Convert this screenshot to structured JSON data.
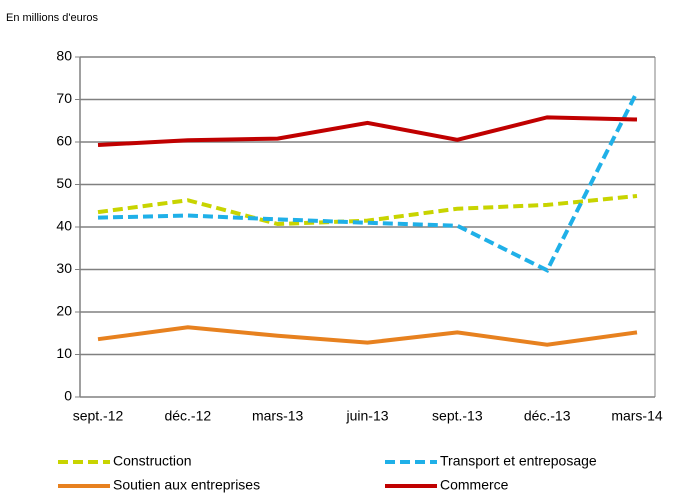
{
  "chart_data": {
    "type": "line",
    "axis_label": "En millions d'euros",
    "categories": [
      "sept.-12",
      "déc.-12",
      "mars-13",
      "juin-13",
      "sept.-13",
      "déc.-13",
      "mars-14"
    ],
    "series": [
      {
        "name": "Construction",
        "color": "#c8d400",
        "dashed": true,
        "values": [
          43.5,
          46.3,
          40.7,
          41.5,
          44.3,
          45.2,
          47.3
        ]
      },
      {
        "name": "Transport et entreposage",
        "color": "#1fb0e8",
        "dashed": true,
        "values": [
          42.2,
          42.7,
          41.8,
          41.0,
          40.3,
          29.8,
          71.8
        ]
      },
      {
        "name": "Soutien aux entreprises",
        "color": "#e7811f",
        "dashed": false,
        "values": [
          13.6,
          16.4,
          14.4,
          12.8,
          15.2,
          12.3,
          15.2
        ]
      },
      {
        "name": "Commerce",
        "color": "#c00000",
        "dashed": false,
        "values": [
          59.3,
          60.4,
          60.8,
          64.5,
          60.5,
          65.8,
          65.3
        ]
      }
    ],
    "ylim": [
      0,
      80
    ],
    "yticks": [
      0,
      10,
      20,
      30,
      40,
      50,
      60,
      70,
      80
    ],
    "grid": true
  }
}
